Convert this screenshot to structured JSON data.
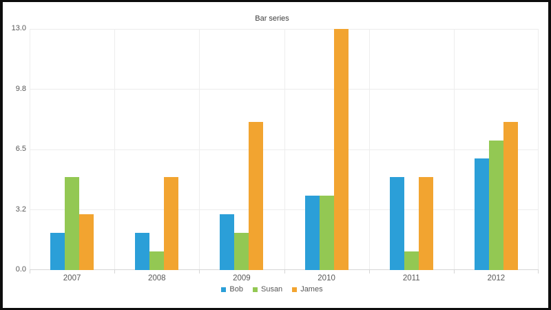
{
  "chart_data": {
    "type": "bar",
    "title": "Bar series",
    "categories": [
      "2007",
      "2008",
      "2009",
      "2010",
      "2011",
      "2012"
    ],
    "series": [
      {
        "name": "Bob",
        "color": "#2b9fd8",
        "values": [
          2,
          2,
          3,
          4,
          5,
          6
        ]
      },
      {
        "name": "Susan",
        "color": "#93c853",
        "values": [
          5,
          1,
          2,
          4,
          1,
          7
        ]
      },
      {
        "name": "James",
        "color": "#f2a430",
        "values": [
          3,
          5,
          8,
          13,
          5,
          8
        ]
      }
    ],
    "xlabel": "",
    "ylabel": "",
    "ylim": [
      0,
      13
    ],
    "y_ticks": {
      "values": [
        0,
        3.25,
        6.5,
        9.75,
        13
      ],
      "labels": [
        "0.0",
        "3.2",
        "6.5",
        "9.8",
        "13.0"
      ]
    },
    "grid": true,
    "legend_position": "bottom",
    "colors": {
      "grid_line": "#ececec",
      "axis_line": "#d5d5d5",
      "tick_text": "#575757",
      "title_text": "#3b3b3b",
      "background": "#ffffff",
      "frame_border": "#0d0d0d"
    }
  }
}
